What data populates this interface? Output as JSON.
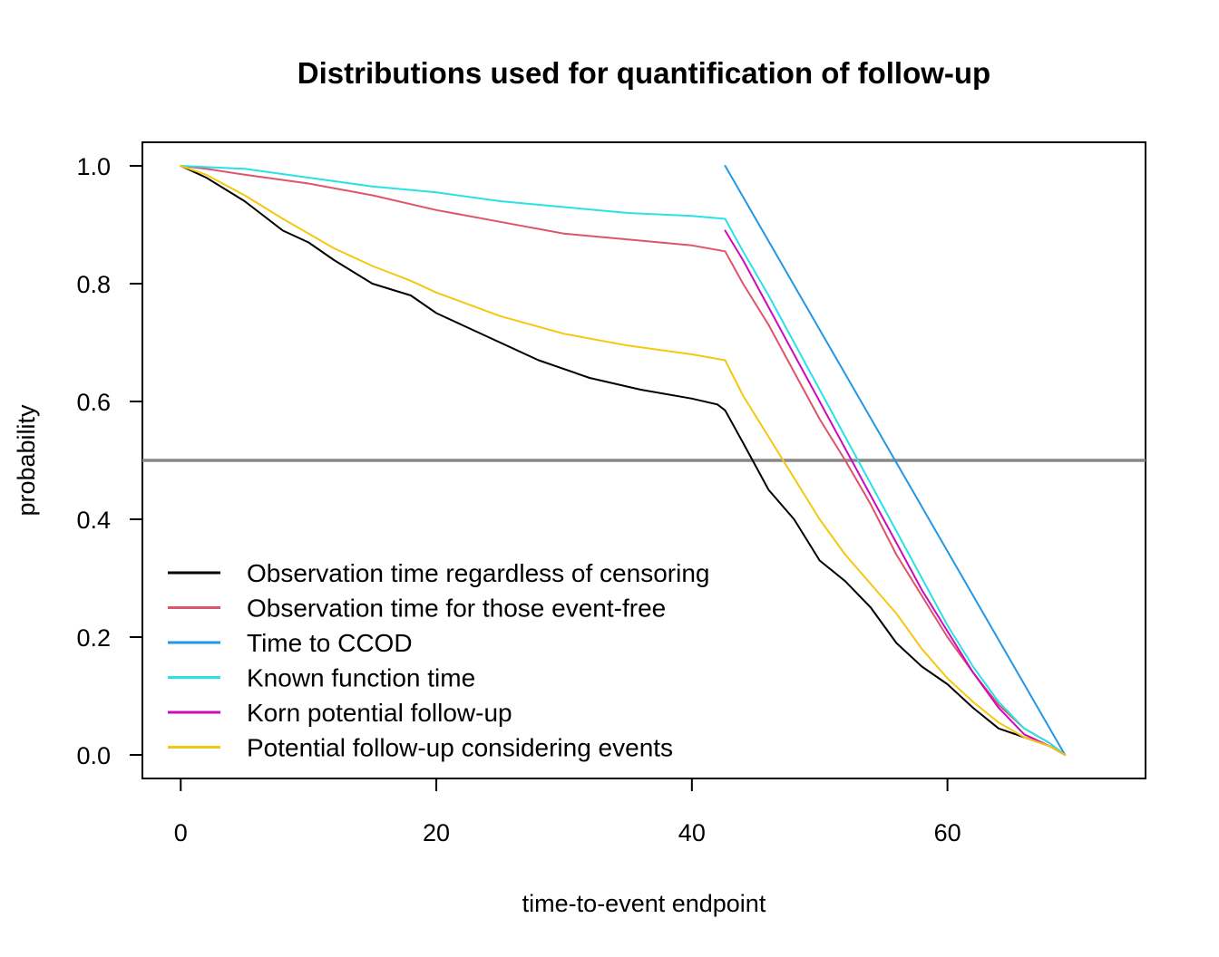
{
  "chart_data": {
    "type": "line",
    "title": "Distributions used for quantification of follow-up",
    "xlabel": "time-to-event endpoint",
    "ylabel": "probability",
    "xlim": [
      -3,
      75.5
    ],
    "ylim": [
      -0.04,
      1.04
    ],
    "x_ticks": [
      0,
      20,
      40,
      60
    ],
    "y_ticks": [
      0.0,
      0.2,
      0.4,
      0.6,
      0.8,
      1.0
    ],
    "x_tick_labels": [
      "0",
      "20",
      "40",
      "60"
    ],
    "y_tick_labels": [
      "0.0",
      "0.2",
      "0.4",
      "0.6",
      "0.8",
      "1.0"
    ],
    "reference_line": {
      "y": 0.5,
      "color": "#888888"
    },
    "legend_position": "bottom-left",
    "grid": false,
    "series": [
      {
        "name": "Observation time regardless of censoring",
        "color": "#000000",
        "x": [
          0,
          2,
          5,
          8,
          10,
          12,
          15,
          18,
          20,
          24,
          28,
          32,
          36,
          40,
          42,
          42.6,
          44,
          46,
          48,
          50,
          52,
          54,
          56,
          58,
          60,
          62,
          64,
          66,
          68,
          69.2
        ],
        "y": [
          1.0,
          0.98,
          0.94,
          0.89,
          0.87,
          0.84,
          0.8,
          0.78,
          0.75,
          0.71,
          0.67,
          0.64,
          0.62,
          0.605,
          0.595,
          0.585,
          0.53,
          0.45,
          0.4,
          0.33,
          0.295,
          0.25,
          0.19,
          0.15,
          0.12,
          0.08,
          0.045,
          0.03,
          0.015,
          0.0
        ]
      },
      {
        "name": "Observation time for those event-free",
        "color": "#DF536B",
        "x": [
          0,
          2,
          5,
          10,
          15,
          20,
          25,
          30,
          35,
          40,
          42.6,
          44,
          46,
          48,
          50,
          52,
          54,
          56,
          58,
          60,
          62,
          64,
          66,
          68,
          69.2
        ],
        "y": [
          1.0,
          0.995,
          0.985,
          0.97,
          0.95,
          0.925,
          0.905,
          0.885,
          0.875,
          0.865,
          0.855,
          0.8,
          0.73,
          0.65,
          0.57,
          0.5,
          0.425,
          0.34,
          0.27,
          0.2,
          0.14,
          0.085,
          0.045,
          0.02,
          0.0
        ]
      },
      {
        "name": "Time to CCOD",
        "color": "#2297E6",
        "x": [
          42.6,
          69.2
        ],
        "y": [
          1.0,
          0.0
        ]
      },
      {
        "name": "Known function time",
        "color": "#28E2E5",
        "x": [
          0,
          5,
          10,
          15,
          20,
          25,
          30,
          35,
          40,
          42.6,
          44,
          46,
          48,
          50,
          52,
          54,
          56,
          58,
          60,
          62,
          64,
          66,
          68,
          69.2
        ],
        "y": [
          1.0,
          0.995,
          0.98,
          0.965,
          0.955,
          0.94,
          0.93,
          0.92,
          0.915,
          0.91,
          0.855,
          0.78,
          0.7,
          0.62,
          0.54,
          0.46,
          0.38,
          0.3,
          0.22,
          0.15,
          0.09,
          0.045,
          0.02,
          0.0
        ]
      },
      {
        "name": "Korn potential follow-up",
        "color": "#CD0BBC",
        "x": [
          42.6,
          44,
          46,
          48,
          50,
          52,
          54,
          56,
          58,
          60,
          62,
          64,
          66,
          68,
          69.2
        ],
        "y": [
          0.89,
          0.84,
          0.76,
          0.68,
          0.6,
          0.52,
          0.44,
          0.36,
          0.28,
          0.21,
          0.14,
          0.08,
          0.035,
          0.015,
          0.0
        ]
      },
      {
        "name": "Potential follow-up considering events",
        "color": "#F5C710",
        "x": [
          0,
          2,
          5,
          8,
          10,
          12,
          15,
          18,
          20,
          25,
          30,
          35,
          40,
          42.6,
          44,
          46,
          48,
          50,
          52,
          54,
          56,
          58,
          60,
          62,
          64,
          66,
          68,
          69.2
        ],
        "y": [
          1.0,
          0.985,
          0.95,
          0.91,
          0.885,
          0.86,
          0.83,
          0.805,
          0.785,
          0.745,
          0.715,
          0.695,
          0.68,
          0.67,
          0.61,
          0.54,
          0.47,
          0.4,
          0.34,
          0.29,
          0.24,
          0.18,
          0.13,
          0.09,
          0.055,
          0.03,
          0.015,
          0.0
        ]
      }
    ]
  }
}
